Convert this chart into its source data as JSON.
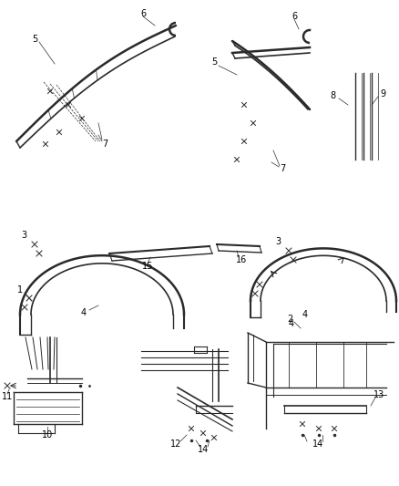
{
  "bg_color": "#ffffff",
  "line_color": "#2a2a2a",
  "label_color": "#000000",
  "label_fontsize": 7,
  "fig_width": 4.38,
  "fig_height": 5.33,
  "dpi": 100,
  "parts": {
    "labels": [
      "1",
      "2",
      "3",
      "3",
      "4",
      "4",
      "5",
      "5",
      "6",
      "6",
      "7",
      "7",
      "8",
      "9",
      "10",
      "11",
      "12",
      "13",
      "14",
      "14",
      "15",
      "16"
    ],
    "positions_x": [
      22,
      318,
      28,
      305,
      98,
      342,
      40,
      228,
      155,
      318,
      118,
      298,
      338,
      415,
      62,
      8,
      185,
      415,
      190,
      383,
      162,
      252
    ],
    "positions_y": [
      315,
      350,
      258,
      270,
      338,
      330,
      48,
      78,
      18,
      55,
      148,
      185,
      108,
      110,
      498,
      458,
      498,
      468,
      510,
      510,
      280,
      280
    ]
  }
}
